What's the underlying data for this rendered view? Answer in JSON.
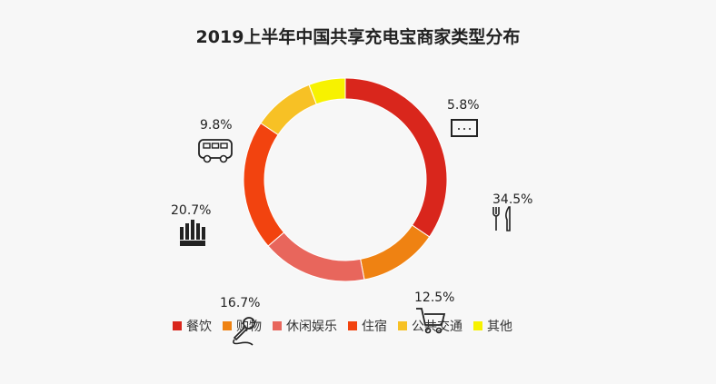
{
  "chart_data": {
    "type": "pie",
    "donut": true,
    "title": "2019上半年中国共享充电宝商家类型分布",
    "categories": [
      "餐饮",
      "购物",
      "休闲娱乐",
      "住宿",
      "公共交通",
      "其他"
    ],
    "values": [
      34.5,
      12.5,
      16.7,
      20.7,
      9.8,
      5.8
    ],
    "labels": [
      "34.5%",
      "12.5%",
      "16.7%",
      "20.7%",
      "9.8%",
      "5.8%"
    ],
    "icons": [
      "fork-knife-icon",
      "shopping-cart-icon",
      "microphone-icon",
      "hotel-icon",
      "bus-icon",
      "more-dots-icon"
    ],
    "colors": [
      "#d9261c",
      "#ef8212",
      "#e8665c",
      "#f2430f",
      "#f7c125",
      "#f7f200"
    ],
    "legend_position": "bottom"
  }
}
